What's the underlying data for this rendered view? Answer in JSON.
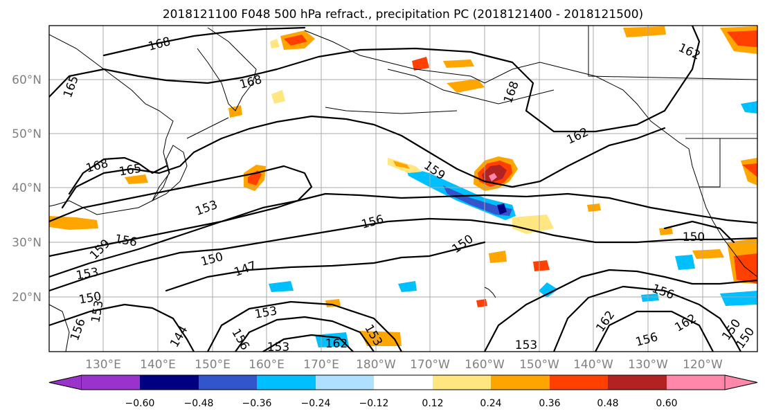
{
  "title": "2018121100 F048 500 hPa refract., precipitation PC (2018121400 - 2018121500)",
  "lat_ticks": [
    "60°N",
    "50°N",
    "40°N",
    "30°N",
    "20°N"
  ],
  "lon_ticks": [
    "130°E",
    "140°E",
    "150°E",
    "160°E",
    "170°E",
    "180°W",
    "170°W",
    "160°W",
    "150°W",
    "140°W",
    "130°W",
    "120°W"
  ],
  "colorbar": {
    "ticks": [
      "−0.60",
      "−0.48",
      "−0.36",
      "−0.24",
      "−0.12",
      "0.12",
      "0.24",
      "0.36",
      "0.48",
      "0.60"
    ],
    "colors": [
      "#9933cc",
      "#000080",
      "#3355cc",
      "#00bfff",
      "#b0e0ff",
      "#ffffff",
      "#ffe680",
      "#ffa500",
      "#ff4000",
      "#b22222",
      "#ff88aa"
    ]
  },
  "contour_labels": [
    "168",
    "168",
    "165",
    "162",
    "168",
    "165",
    "168",
    "153",
    "159",
    "162",
    "156",
    "150",
    "150",
    "156",
    "153",
    "150",
    "147",
    "153",
    "159",
    "150",
    "153",
    "156",
    "153",
    "162",
    "144",
    "156",
    "153",
    "162",
    "153",
    "156",
    "162",
    "156",
    "150",
    "150"
  ]
}
